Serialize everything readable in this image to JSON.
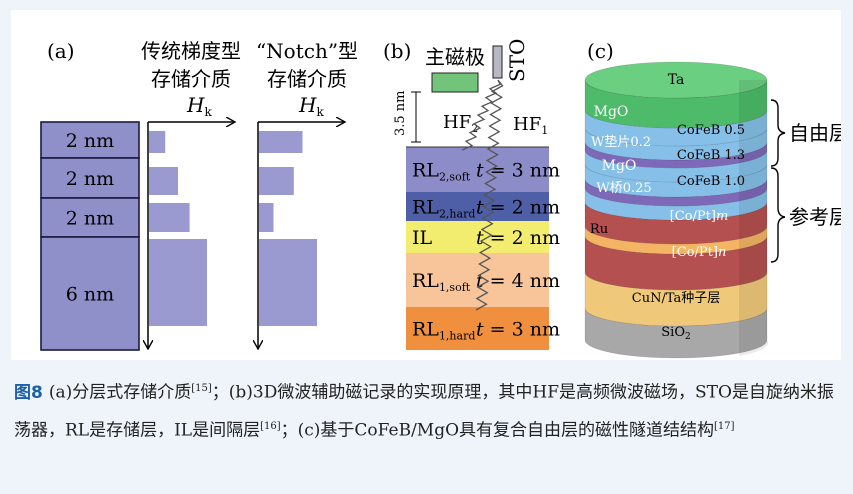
{
  "panel_a": {
    "label": "(a)",
    "col1_title_line1": "传统梯度型",
    "col1_title_line2": "存储介质",
    "col2_title_line1": "“Notch”型",
    "col2_title_line2": "存储介质",
    "hk_symbol": "H",
    "hk_sub": "k",
    "layers": [
      "2 nm",
      "2 nm",
      "2 nm",
      "6 nm"
    ],
    "gradient_bar_fractions": [
      0.28,
      0.5,
      0.7,
      1.0
    ],
    "notch_bar_fractions": [
      0.75,
      0.6,
      0.25,
      1.0
    ]
  },
  "panel_b": {
    "label": "(b)",
    "main_pole": "主磁极",
    "sto": "STO",
    "gap": "3.5 nm",
    "hf2_base": "HF",
    "hf2_sub": "2",
    "hf1_base": "HF",
    "hf1_sub": "1",
    "layers": [
      {
        "base": "RL",
        "sub": "2,soft",
        "t": "3 nm",
        "color": "#8c8cc8"
      },
      {
        "base": "RL",
        "sub": "2,hard",
        "t": "2 nm",
        "color": "#4e5fa8"
      },
      {
        "base": "IL",
        "sub": "",
        "t": "2 nm",
        "color": "#f2ed6f"
      },
      {
        "base": "RL",
        "sub": "1,soft",
        "t": "4 nm",
        "color": "#f8c49a"
      },
      {
        "base": "RL",
        "sub": "1,hard",
        "t": "3 nm",
        "color": "#f0903e"
      }
    ],
    "t_symbol": "t",
    "equals": "="
  },
  "panel_c": {
    "label": "(c)",
    "layers": {
      "ta": "Ta",
      "mgo_top": "MgO",
      "cofeb_05": "CoFeB 0.5",
      "w_pad": "W垫片0.2",
      "cofeb_13": "CoFeB 1.3",
      "mgo_mid": "MgO",
      "w_bridge": "W桥0.25",
      "cofeb_10": "CoFeB 1.0",
      "copt_m_pre": "[Co/Pt]",
      "copt_m_var": "m",
      "ru": "Ru",
      "copt_n_pre": "[Co/Pt]",
      "copt_n_var": "n",
      "seed": "CuN/Ta种子层",
      "sio2_base": "SiO",
      "sio2_sub": "2"
    },
    "free_layer": "自由层",
    "ref_layer": "参考层"
  },
  "caption": {
    "fig_label": "图8",
    "p1": "(a)分层式存储介质",
    "r1": "[15]",
    "p2": "；(b)3D微波辅助磁记录的实现原理，其中HF是高频微波磁场，STO是自旋纳米振荡器，RL是存储层，IL是间隔层",
    "r2": "[16]",
    "p3": "；(c)基于CoFeB/MgO具有复合自由层的磁性隧道结结构",
    "r3": "[17]"
  }
}
